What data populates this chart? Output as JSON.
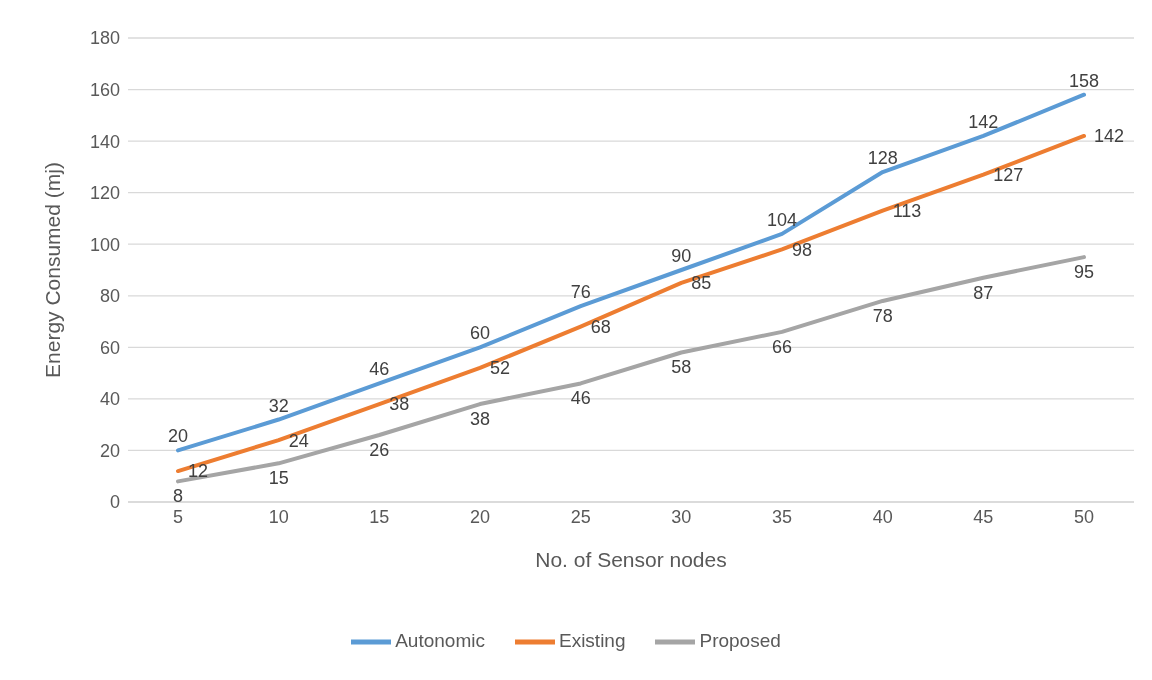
{
  "chart_data": {
    "type": "line",
    "xlabel": "No. of Sensor nodes",
    "ylabel": "Energy Consumed (mj)",
    "categories": [
      "5",
      "10",
      "15",
      "20",
      "25",
      "30",
      "35",
      "40",
      "45",
      "50"
    ],
    "series": [
      {
        "name": "Autonomic",
        "color": "#5b9bd5",
        "values": [
          20,
          32,
          46,
          60,
          76,
          90,
          104,
          128,
          142,
          158
        ]
      },
      {
        "name": "Existing",
        "color": "#ed7d31",
        "values": [
          12,
          24,
          38,
          52,
          68,
          85,
          98,
          113,
          127,
          142
        ]
      },
      {
        "name": "Proposed",
        "color": "#a5a5a5",
        "values": [
          8,
          15,
          26,
          38,
          46,
          58,
          66,
          78,
          87,
          95
        ]
      }
    ],
    "ylim": [
      0,
      180
    ],
    "yticks": [
      0,
      20,
      40,
      60,
      80,
      100,
      120,
      140,
      160,
      180
    ],
    "grid": "y",
    "legend": "bottom",
    "marker": "none",
    "line_style": "solid",
    "data_labels": true
  }
}
